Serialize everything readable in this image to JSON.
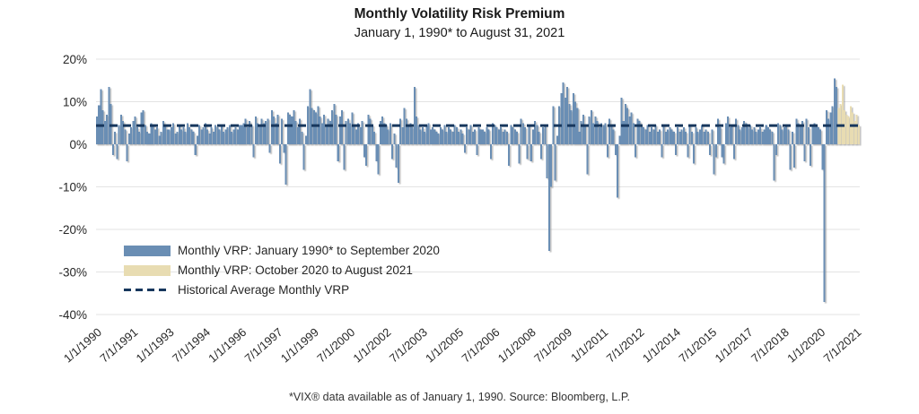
{
  "header": {
    "title": "Monthly Volatility Risk Premium",
    "subtitle": "January 1, 1990* to August 31, 2021"
  },
  "footnote": "*VIX® data available as of January 1, 1990. Source: Bloomberg, L.P.",
  "colors": {
    "blue_bar": "#6a8eb4",
    "tan_bar": "#e8dcb2",
    "navy_line": "#17375d",
    "gridline": "#e3e3e3",
    "axis_text": "#262626"
  },
  "legend": {
    "items": [
      {
        "swatch": "blue_bar",
        "label": "Monthly VRP: January 1990* to September 2020"
      },
      {
        "swatch": "tan_bar",
        "label": "Monthly VRP: October 2020 to August 2021"
      },
      {
        "swatch": "navy_line",
        "label": "Historical Average Monthly VRP"
      }
    ]
  },
  "chart_data": {
    "type": "bar",
    "title": "Monthly Volatility Risk Premium",
    "subtitle": "January 1, 1990* to August 31, 2021",
    "xlabel": "",
    "ylabel": "",
    "ylim": [
      -40,
      20
    ],
    "y_tick_labels": [
      "20%",
      "10%",
      "0%",
      "-10%",
      "-20%",
      "-30%",
      "-40%"
    ],
    "y_tick_values": [
      20,
      10,
      0,
      -10,
      -20,
      -30,
      -40
    ],
    "grid": true,
    "legend_position": "inside-left-bottom",
    "x_start_month": "1990-01",
    "x_end_month": "2021-08",
    "x_tick_interval_months": 18,
    "x_tick_labels": [
      "1/1/1990",
      "7/1/1991",
      "1/1/1993",
      "7/1/1994",
      "1/1/1996",
      "7/1/1997",
      "1/1/1999",
      "7/1/2000",
      "1/1/2002",
      "7/1/2003",
      "1/1/2005",
      "7/1/2006",
      "1/1/2008",
      "7/1/2009",
      "1/1/2011",
      "7/1/2012",
      "1/1/2014",
      "7/1/2015",
      "1/1/2017",
      "7/1/2018",
      "1/1/2020",
      "7/1/2021"
    ],
    "average_line": {
      "name": "Historical Average Monthly VRP",
      "value": 4.4,
      "style": "dashed"
    },
    "series": [
      {
        "name": "Monthly VRP: January 1990* to September 2020",
        "color_key": "blue_bar",
        "start_month": "1990-01",
        "values": [
          6.5,
          9.2,
          13.0,
          8.0,
          5.5,
          7.0,
          13.5,
          9.5,
          -2.5,
          3.0,
          -3.5,
          4.5,
          7.0,
          5.5,
          3.5,
          -4.0,
          2.5,
          4.0,
          5.5,
          6.5,
          4.0,
          3.0,
          7.5,
          8.0,
          4.5,
          3.0,
          2.5,
          5.0,
          4.5,
          3.5,
          4.0,
          2.0,
          3.0,
          5.5,
          4.5,
          3.5,
          3.5,
          4.0,
          5.0,
          2.5,
          3.0,
          4.5,
          3.5,
          4.0,
          3.0,
          5.0,
          4.0,
          3.5,
          3.0,
          -2.5,
          2.0,
          4.5,
          3.5,
          4.0,
          5.0,
          3.5,
          2.5,
          4.0,
          3.0,
          4.5,
          4.0,
          3.5,
          4.5,
          3.0,
          3.5,
          4.0,
          4.5,
          3.0,
          3.5,
          4.0,
          3.5,
          4.5,
          4.5,
          5.0,
          6.0,
          4.0,
          5.5,
          4.5,
          -3.0,
          6.5,
          5.0,
          4.5,
          6.0,
          5.0,
          5.5,
          6.0,
          -2.0,
          8.0,
          6.5,
          5.0,
          7.0,
          -4.5,
          6.0,
          -2.0,
          -9.5,
          7.5,
          7.0,
          6.5,
          8.0,
          5.5,
          4.0,
          6.0,
          3.0,
          -6.0,
          2.0,
          9.0,
          13.0,
          8.5,
          8.0,
          7.5,
          9.0,
          6.5,
          5.0,
          7.0,
          4.5,
          6.0,
          5.5,
          8.0,
          9.5,
          7.0,
          -4.0,
          6.5,
          8.0,
          -6.0,
          5.5,
          6.0,
          5.0,
          7.5,
          4.5,
          3.5,
          5.0,
          4.0,
          5.5,
          -3.0,
          -5.0,
          7.0,
          6.0,
          4.5,
          3.0,
          -4.0,
          -7.0,
          5.5,
          6.5,
          5.0,
          4.5,
          3.5,
          5.0,
          -3.5,
          2.5,
          -5.5,
          -9.0,
          6.0,
          4.0,
          8.5,
          6.0,
          4.5,
          5.0,
          4.0,
          13.5,
          6.5,
          4.5,
          3.5,
          4.0,
          3.0,
          4.5,
          5.0,
          3.5,
          4.0,
          3.5,
          3.0,
          2.5,
          4.0,
          3.5,
          4.5,
          3.0,
          4.0,
          3.5,
          3.0,
          4.5,
          4.0,
          3.0,
          3.5,
          2.5,
          -2.0,
          4.0,
          3.5,
          4.5,
          3.0,
          3.5,
          -2.5,
          4.0,
          3.5,
          3.5,
          3.0,
          4.0,
          3.5,
          -3.5,
          5.0,
          4.5,
          4.0,
          3.5,
          4.0,
          3.0,
          3.5,
          3.0,
          -5.0,
          4.5,
          4.0,
          3.5,
          3.0,
          -4.5,
          6.0,
          5.0,
          4.0,
          -3.5,
          4.5,
          -4.0,
          3.5,
          5.5,
          4.5,
          3.0,
          -3.5,
          4.0,
          4.5,
          -8.0,
          -25.0,
          -10.0,
          9.0,
          -8.5,
          2.0,
          9.0,
          12.0,
          14.5,
          11.0,
          13.5,
          9.5,
          8.0,
          12.0,
          10.0,
          8.5,
          3.0,
          5.5,
          7.0,
          4.5,
          -7.0,
          6.5,
          8.0,
          5.0,
          6.5,
          5.5,
          4.0,
          5.0,
          4.5,
          5.0,
          -3.0,
          6.0,
          4.5,
          3.5,
          -2.5,
          -12.5,
          2.0,
          11.0,
          5.5,
          9.5,
          8.5,
          6.5,
          7.5,
          5.0,
          -3.0,
          6.0,
          5.5,
          4.5,
          4.0,
          3.5,
          4.5,
          3.0,
          4.0,
          3.5,
          4.5,
          3.0,
          3.5,
          -3.0,
          4.5,
          3.0,
          3.5,
          4.0,
          3.5,
          3.0,
          -2.5,
          4.0,
          3.0,
          3.5,
          4.0,
          3.0,
          -3.0,
          4.5,
          3.0,
          -4.5,
          4.0,
          3.0,
          3.5,
          4.5,
          3.0,
          3.5,
          3.0,
          -2.5,
          3.5,
          -7.0,
          -3.0,
          6.0,
          4.0,
          -3.0,
          -4.5,
          5.0,
          6.5,
          4.0,
          4.5,
          -3.5,
          6.0,
          4.5,
          3.5,
          4.0,
          5.5,
          5.0,
          4.0,
          4.5,
          3.5,
          4.0,
          3.0,
          3.5,
          4.0,
          3.0,
          3.5,
          4.5,
          4.0,
          3.5,
          3.0,
          -8.5,
          -2.5,
          5.0,
          4.5,
          3.5,
          4.0,
          4.5,
          3.5,
          -6.0,
          3.0,
          -5.5,
          6.0,
          5.0,
          4.5,
          5.5,
          -4.0,
          6.0,
          4.0,
          -5.0,
          4.5,
          5.0,
          4.5,
          4.0,
          3.5,
          -6.0,
          -37.0,
          8.0,
          6.0,
          7.5,
          9.0,
          15.5,
          13.5
        ]
      },
      {
        "name": "Monthly VRP: October 2020 to August 2021",
        "color_key": "tan_bar",
        "start_month": "2020-10",
        "values": [
          8.5,
          9.5,
          14.0,
          8.0,
          7.0,
          6.5,
          9.0,
          7.5,
          5.5,
          7.0,
          4.5
        ]
      }
    ]
  }
}
